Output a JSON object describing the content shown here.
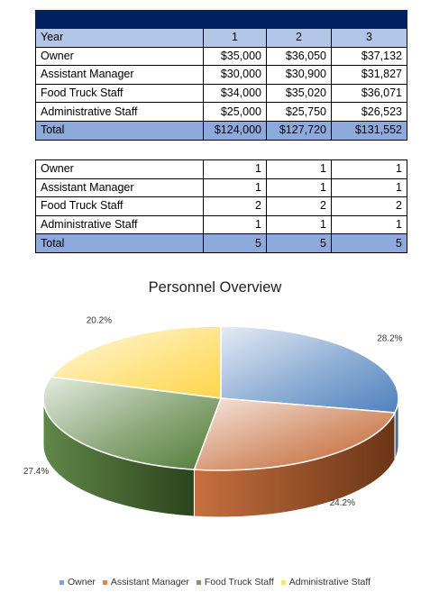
{
  "salary_table": {
    "header": [
      "Year",
      "1",
      "2",
      "3"
    ],
    "rows": [
      {
        "label": "Owner",
        "values": [
          "$35,000",
          "$36,050",
          "$37,132"
        ]
      },
      {
        "label": "Assistant Manager",
        "values": [
          "$30,000",
          "$30,900",
          "$31,827"
        ]
      },
      {
        "label": "Food Truck Staff",
        "values": [
          "$34,000",
          "$35,020",
          "$36,071"
        ]
      },
      {
        "label": "Administrative Staff",
        "values": [
          "$25,000",
          "$25,750",
          "$26,523"
        ]
      }
    ],
    "total": {
      "label": "Total",
      "values": [
        "$124,000",
        "$127,720",
        "$131,552"
      ]
    }
  },
  "headcount_table": {
    "rows": [
      {
        "label": "Owner",
        "values": [
          "1",
          "1",
          "1"
        ]
      },
      {
        "label": "Assistant Manager",
        "values": [
          "1",
          "1",
          "1"
        ]
      },
      {
        "label": "Food Truck Staff",
        "values": [
          "2",
          "2",
          "2"
        ]
      },
      {
        "label": "Administrative Staff",
        "values": [
          "1",
          "1",
          "1"
        ]
      }
    ],
    "total": {
      "label": "Total",
      "values": [
        "5",
        "5",
        "5"
      ]
    }
  },
  "colors": {
    "header_band": "#002060",
    "header_row": "#b4c6e7",
    "total_row": "#8ea9db",
    "owner": "#4f81bd",
    "assistant_manager": "#c0602a",
    "food_truck_staff": "#4f7a35",
    "administrative_staff": "#ffd54a"
  },
  "chart_data": {
    "type": "pie",
    "title": "Personnel Overview",
    "categories": [
      "Owner",
      "Assistant Manager",
      "Food Truck Staff",
      "Administrative Staff"
    ],
    "values": [
      28.2,
      24.2,
      27.4,
      20.2
    ],
    "labels": [
      "28.2%",
      "24.2%",
      "27.4%",
      "20.2%"
    ],
    "legend_position": "bottom",
    "style": "3d"
  }
}
